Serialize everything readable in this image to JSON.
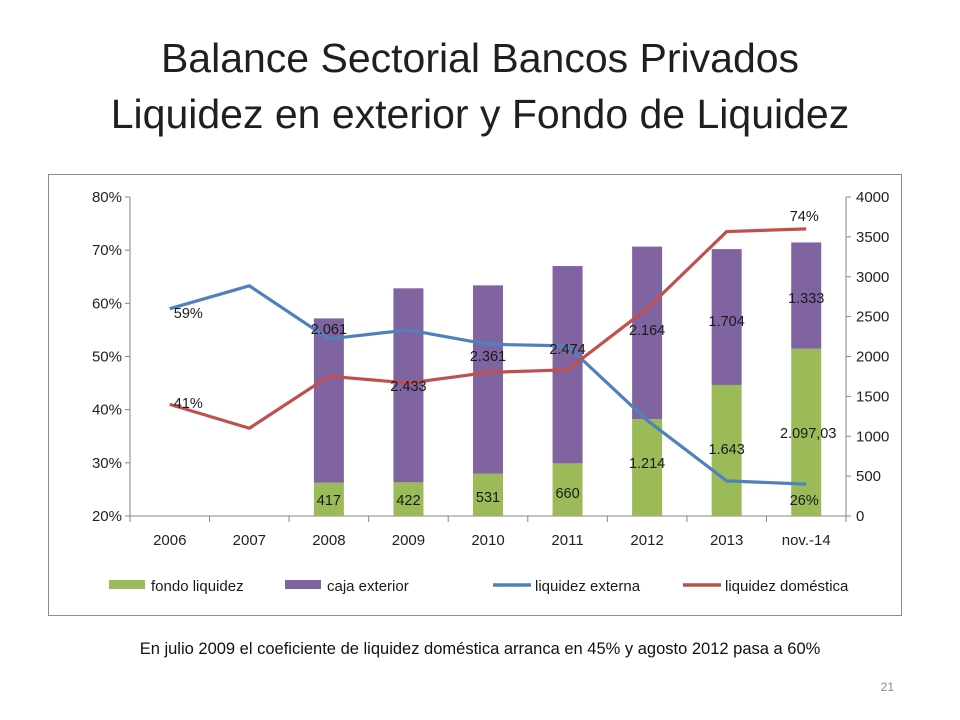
{
  "slide": {
    "title_line1": "Balance Sectorial Bancos Privados",
    "title_line2": "Liquidez en exterior y Fondo de Liquidez",
    "footnote": "En julio 2009 el coeficiente de liquidez doméstica arranca en 45% y  agosto 2012 pasa a 60%",
    "page_number": "21"
  },
  "chart_data": {
    "type": "bar",
    "stacked": true,
    "categories": [
      "2006",
      "2007",
      "2008",
      "2009",
      "2010",
      "2011",
      "2012",
      "2013",
      "nov.-14"
    ],
    "left_axis": {
      "ticks": [
        "20%",
        "30%",
        "40%",
        "50%",
        "60%",
        "70%",
        "80%"
      ],
      "range": [
        20,
        80
      ]
    },
    "right_axis": {
      "ticks": [
        "0",
        "500",
        "1000",
        "1500",
        "2000",
        "2500",
        "3000",
        "3500",
        "4000"
      ],
      "range": [
        0,
        4000
      ]
    },
    "grid": false,
    "legend_position": "bottom",
    "bar_series": [
      {
        "name": "fondo liquidez",
        "color": "#9bbb59",
        "axis": "right",
        "values": [
          null,
          null,
          417,
          422,
          531,
          660,
          1214,
          1643,
          2097.03
        ],
        "labels": [
          "",
          "",
          "417",
          "422",
          "531",
          "660",
          "1.214",
          "1.643",
          "2.097,03"
        ]
      },
      {
        "name": "caja exterior",
        "color": "#8064a2",
        "axis": "right",
        "values": [
          null,
          null,
          2061,
          2433,
          2361,
          2474,
          2164,
          1704,
          1333
        ],
        "labels": [
          "",
          "",
          "2.061",
          "2.433",
          "2.361",
          "2.474",
          "2.164",
          "1.704",
          "1.333"
        ]
      }
    ],
    "line_series": [
      {
        "name": "liquidez externa",
        "color": "#4f81bd",
        "axis": "left",
        "values": [
          59,
          63.3,
          53.3,
          55,
          52.3,
          52,
          38,
          26.6,
          26
        ],
        "labels": [
          "59%",
          "",
          "",
          "",
          "",
          "",
          "",
          "",
          "26%"
        ]
      },
      {
        "name": "liquidez doméstica",
        "color": "#c0504d",
        "axis": "left",
        "values": [
          41,
          36.5,
          46.3,
          45,
          47,
          47.5,
          59,
          73.5,
          74
        ],
        "labels": [
          "41%",
          "",
          "",
          "",
          "",
          "",
          "",
          "",
          "74%"
        ]
      }
    ]
  }
}
